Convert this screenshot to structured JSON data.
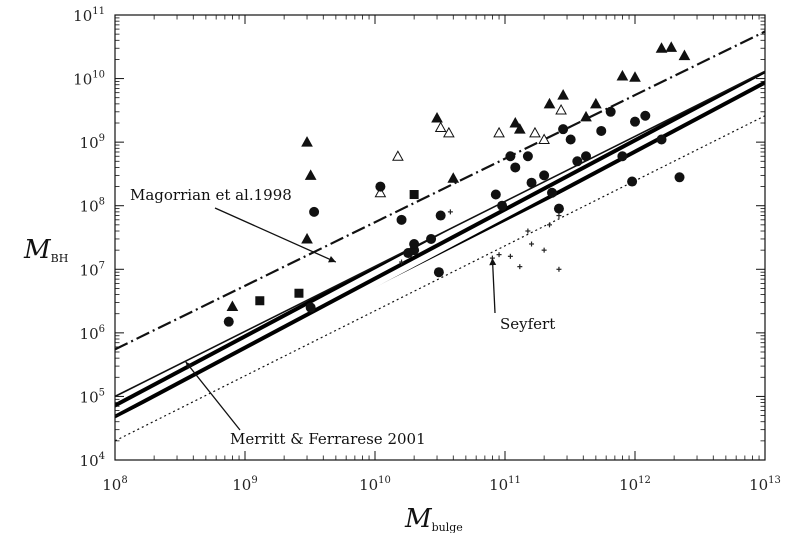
{
  "chart_data": {
    "type": "scatter",
    "xlabel": "M",
    "xlabel_sub": "bulge",
    "ylabel": "M",
    "ylabel_sub": "BH",
    "xscale": "log",
    "yscale": "log",
    "xlim": [
      100000000.0,
      10000000000000.0
    ],
    "ylim": [
      10000.0,
      100000000000.0
    ],
    "grid": false,
    "x_ticks": [
      {
        "base": "10",
        "exp": "8"
      },
      {
        "base": "10",
        "exp": "9"
      },
      {
        "base": "10",
        "exp": "10"
      },
      {
        "base": "10",
        "exp": "11"
      },
      {
        "base": "10",
        "exp": "12"
      },
      {
        "base": "10",
        "exp": "13"
      }
    ],
    "y_ticks": [
      {
        "base": "10",
        "exp": "4"
      },
      {
        "base": "10",
        "exp": "5"
      },
      {
        "base": "10",
        "exp": "6"
      },
      {
        "base": "10",
        "exp": "7"
      },
      {
        "base": "10",
        "exp": "8"
      },
      {
        "base": "10",
        "exp": "9"
      },
      {
        "base": "10",
        "exp": "10"
      },
      {
        "base": "10",
        "exp": "11"
      }
    ],
    "lines": [
      {
        "style": "dash-dot",
        "x": [
          100000000.0,
          10000000000000.0
        ],
        "y": [
          550000.0,
          55000000000.0
        ]
      },
      {
        "style": "solid",
        "x": [
          100000000.0,
          10000000000000.0
        ],
        "y": [
          100000.0,
          13000000000.0
        ]
      },
      {
        "style": "dotted",
        "x": [
          100000000.0,
          10000000000000.0
        ],
        "y": [
          20000.0,
          2600000000.0
        ]
      }
    ],
    "band": {
      "x": [
        100000000.0,
        10000000000000.0
      ],
      "lower": [
        45000.0,
        6500000000.0
      ],
      "upper": [
        100000.0,
        13000000000.0
      ],
      "fill": "hatched"
    },
    "series": [
      {
        "marker": "filled-triangle",
        "points": [
          [
            800000000.0,
            2600000.0
          ],
          [
            3000000000.0,
            1000000000.0
          ],
          [
            3000000000.0,
            30000000.0
          ],
          [
            3200000000.0,
            300000000.0
          ],
          [
            40000000000.0,
            270000000.0
          ],
          [
            120000000000.0,
            2000000000.0
          ],
          [
            130000000000.0,
            1600000000.0
          ],
          [
            220000000000.0,
            4000000000.0
          ],
          [
            280000000000.0,
            5500000000.0
          ],
          [
            420000000000.0,
            2500000000.0
          ],
          [
            500000000000.0,
            4000000000.0
          ],
          [
            800000000000.0,
            11000000000.0
          ],
          [
            1000000000000.0,
            10500000000.0
          ],
          [
            1600000000000.0,
            30000000000.0
          ],
          [
            1900000000000.0,
            31000000000.0
          ],
          [
            2400000000000.0,
            23000000000.0
          ],
          [
            30000000000.0,
            2400000000.0
          ]
        ]
      },
      {
        "marker": "open-triangle",
        "points": [
          [
            15000000000.0,
            600000000.0
          ],
          [
            32000000000.0,
            1700000000.0
          ],
          [
            37000000000.0,
            1400000000.0
          ],
          [
            90000000000.0,
            1400000000.0
          ],
          [
            170000000000.0,
            1400000000.0
          ],
          [
            200000000000.0,
            1100000000.0
          ],
          [
            270000000000.0,
            3200000000.0
          ],
          [
            11000000000.0,
            160000000.0
          ]
        ]
      },
      {
        "marker": "filled-circle",
        "points": [
          [
            750000000.0,
            1500000.0
          ],
          [
            3400000000.0,
            80000000.0
          ],
          [
            3200000000.0,
            2500000.0
          ],
          [
            11000000000.0,
            200000000.0
          ],
          [
            16000000000.0,
            60000000.0
          ],
          [
            18000000000.0,
            18000000.0
          ],
          [
            20000000000.0,
            20000000.0
          ],
          [
            27000000000.0,
            30000000.0
          ],
          [
            31000000000.0,
            9000000.0
          ],
          [
            32000000000.0,
            70000000.0
          ],
          [
            85000000000.0,
            150000000.0
          ],
          [
            95000000000.0,
            100000000.0
          ],
          [
            110000000000.0,
            600000000.0
          ],
          [
            120000000000.0,
            400000000.0
          ],
          [
            150000000000.0,
            600000000.0
          ],
          [
            160000000000.0,
            230000000.0
          ],
          [
            200000000000.0,
            300000000.0
          ],
          [
            230000000000.0,
            160000000.0
          ],
          [
            260000000000.0,
            90000000.0
          ],
          [
            280000000000.0,
            1600000000.0
          ],
          [
            320000000000.0,
            1100000000.0
          ],
          [
            360000000000.0,
            500000000.0
          ],
          [
            420000000000.0,
            600000000.0
          ],
          [
            550000000000.0,
            1500000000.0
          ],
          [
            650000000000.0,
            3000000000.0
          ],
          [
            800000000000.0,
            600000000.0
          ],
          [
            950000000000.0,
            240000000.0
          ],
          [
            1000000000000.0,
            2100000000.0
          ],
          [
            1200000000000.0,
            2600000000.0
          ],
          [
            1600000000000.0,
            1100000000.0
          ],
          [
            2200000000000.0,
            280000000.0
          ],
          [
            20000000000.0,
            25000000.0
          ]
        ]
      },
      {
        "marker": "filled-square",
        "points": [
          [
            1300000000.0,
            3200000.0
          ],
          [
            2600000000.0,
            4200000.0
          ],
          [
            20000000000.0,
            150000000.0
          ]
        ]
      },
      {
        "marker": "small-star",
        "points": [
          [
            16000000000.0,
            13000000.0
          ],
          [
            80000000000.0,
            15000000.0
          ],
          [
            90000000000.0,
            17000000.0
          ],
          [
            110000000000.0,
            16000000.0
          ],
          [
            160000000000.0,
            25000000.0
          ],
          [
            200000000000.0,
            20000000.0
          ],
          [
            260000000000.0,
            10000000.0
          ],
          [
            220000000000.0,
            50000000.0
          ],
          [
            260000000000.0,
            70000000.0
          ],
          [
            150000000000.0,
            40000000.0
          ],
          [
            38000000000.0,
            80000000.0
          ],
          [
            130000000000.0,
            11000000.0
          ]
        ]
      }
    ],
    "annotations": [
      {
        "text": "Magorrian et al.1998",
        "arrow_to": [
          5000000000.0,
          13000000.0
        ]
      },
      {
        "text": "Seyfert",
        "arrow_to": [
          80000000000.0,
          15000000.0
        ]
      },
      {
        "text": "Merritt & Ferrarese 2001",
        "arrow_to": [
          350000000.0,
          350000.0
        ]
      }
    ]
  }
}
